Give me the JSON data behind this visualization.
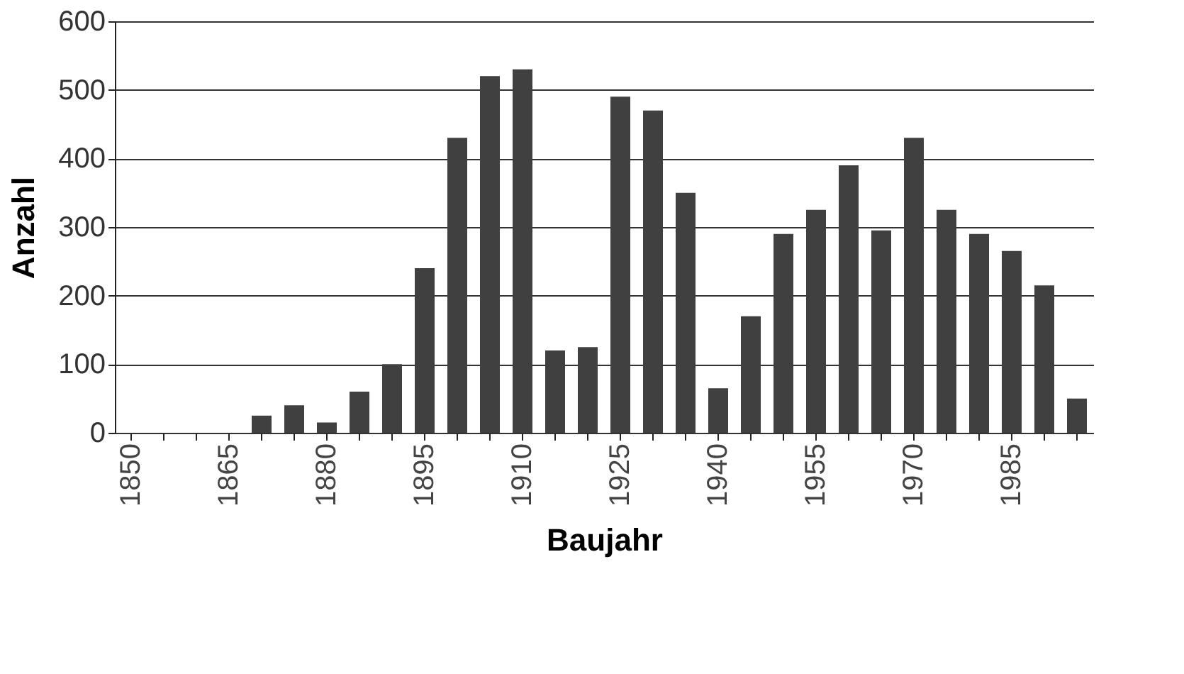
{
  "chart_data": {
    "type": "bar",
    "xlabel": "Baujahr",
    "ylabel": "Anzahl",
    "categories": [
      "1850",
      null,
      null,
      "1865",
      null,
      null,
      "1880",
      null,
      null,
      "1895",
      null,
      null,
      "1910",
      null,
      null,
      "1925",
      null,
      null,
      "1940",
      null,
      null,
      "1955",
      null,
      null,
      "1970",
      null,
      null,
      "1985",
      null,
      null
    ],
    "values": [
      0,
      0,
      0,
      0,
      25,
      40,
      15,
      60,
      100,
      240,
      430,
      520,
      530,
      120,
      125,
      490,
      470,
      350,
      65,
      170,
      290,
      325,
      390,
      295,
      430,
      325,
      290,
      265,
      215,
      50
    ],
    "color": "#404040",
    "ylim": [
      0,
      600
    ],
    "yticks": [
      0,
      100,
      200,
      300,
      400,
      500,
      600
    ],
    "grid": "y"
  }
}
